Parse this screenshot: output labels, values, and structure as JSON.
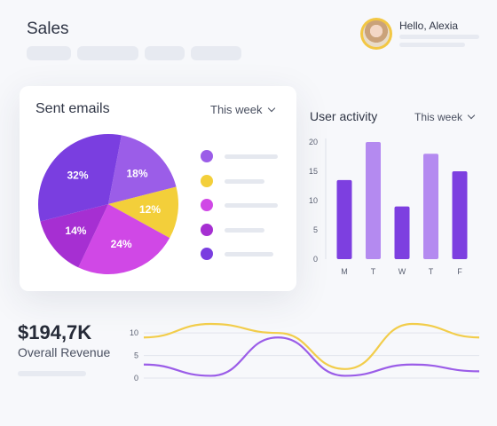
{
  "header": {
    "title": "Sales"
  },
  "user": {
    "greeting": "Hello, Alexia"
  },
  "sent_emails": {
    "title": "Sent emails",
    "period": "This week",
    "slices": [
      {
        "label": "18%",
        "value": 18,
        "color": "#9b5de8"
      },
      {
        "label": "12%",
        "value": 12,
        "color": "#f3cf3a"
      },
      {
        "label": "24%",
        "value": 24,
        "color": "#d048e6"
      },
      {
        "label": "14%",
        "value": 14,
        "color": "#a62fd2"
      },
      {
        "label": "32%",
        "value": 32,
        "color": "#7a3ee0"
      }
    ]
  },
  "user_activity": {
    "title": "User activity",
    "period": "This week"
  },
  "revenue": {
    "value": "$194,7K",
    "label": "Overall Revenue"
  },
  "chart_data": [
    {
      "type": "bar",
      "title": "User activity",
      "categories": [
        "M",
        "T",
        "W",
        "T",
        "F"
      ],
      "values": [
        13.5,
        20,
        9,
        18,
        15
      ],
      "ylim": [
        0,
        20
      ],
      "yticks": [
        0,
        5,
        10,
        15,
        20
      ],
      "colors": [
        "#7d3fe0",
        "#b48af0",
        "#7d3fe0",
        "#b48af0",
        "#7d3fe0"
      ],
      "grid": false
    },
    {
      "type": "line",
      "ylim": [
        0,
        12
      ],
      "yticks": [
        0,
        5,
        10
      ],
      "series": [
        {
          "color": "#f2cd4b",
          "values": [
            9,
            12,
            10,
            2,
            12,
            9
          ]
        },
        {
          "color": "#9b5de8",
          "values": [
            3,
            0.5,
            9,
            0.5,
            3,
            1.5
          ]
        }
      ],
      "grid": true
    }
  ]
}
